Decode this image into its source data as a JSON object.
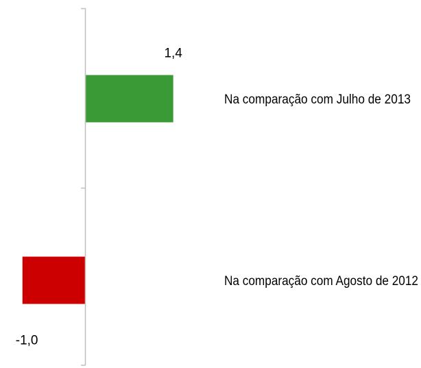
{
  "chart_data": {
    "type": "bar",
    "orientation": "horizontal",
    "categories": [
      "Na comparação com Julho de 2013",
      "Na comparação com Agosto de 2012"
    ],
    "values": [
      1.4,
      -1.0
    ],
    "value_labels": [
      "1,4",
      "-1,0"
    ],
    "colors": [
      "#3a9a35",
      "#cc0000"
    ],
    "axis_color": "#bfbfbf",
    "title": "",
    "xlabel": "",
    "ylabel": "",
    "xlim": [
      -1.0,
      1.4
    ],
    "grid": false,
    "legend": "none"
  }
}
